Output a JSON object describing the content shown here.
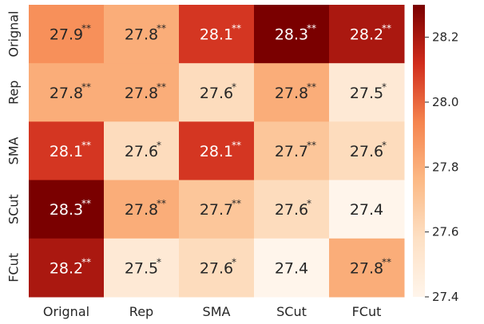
{
  "chart_data": {
    "type": "heatmap",
    "title": "",
    "xlabel": "",
    "ylabel": "",
    "x_categories": [
      "Orignal",
      "Rep",
      "SMA",
      "SCut",
      "FCut"
    ],
    "y_categories": [
      "Orignal",
      "Rep",
      "SMA",
      "SCut",
      "FCut"
    ],
    "values": [
      [
        27.9,
        27.8,
        28.1,
        28.3,
        28.2
      ],
      [
        27.8,
        27.8,
        27.6,
        27.8,
        27.5
      ],
      [
        28.1,
        27.6,
        28.1,
        27.7,
        27.6
      ],
      [
        28.3,
        27.8,
        27.7,
        27.6,
        27.4
      ],
      [
        28.2,
        27.5,
        27.6,
        27.4,
        27.8
      ]
    ],
    "cell_labels": [
      [
        "27.9",
        "27.8",
        "28.1",
        "28.3",
        "28.2"
      ],
      [
        "27.8",
        "27.8",
        "27.6",
        "27.8",
        "27.5"
      ],
      [
        "28.1",
        "27.6",
        "28.1",
        "27.7",
        "27.6"
      ],
      [
        "28.3",
        "27.8",
        "27.7",
        "27.6",
        "27.4"
      ],
      [
        "28.2",
        "27.5",
        "27.6",
        "27.4",
        "27.8"
      ]
    ],
    "significance": [
      [
        "**",
        "**",
        "**",
        "**",
        "**"
      ],
      [
        "**",
        "**",
        "*",
        "**",
        "*"
      ],
      [
        "**",
        "*",
        "**",
        "**",
        "*"
      ],
      [
        "**",
        "**",
        "**",
        "*",
        ""
      ],
      [
        "**",
        "*",
        "*",
        "",
        "**"
      ]
    ],
    "color_range": [
      27.4,
      28.3
    ],
    "colormap": "OrRd",
    "colorbar": {
      "ticks": [
        27.4,
        27.6,
        27.8,
        28.0,
        28.2
      ],
      "tick_labels": [
        "27.4",
        "27.6",
        "27.8",
        "28.0",
        "28.2"
      ],
      "placement": "right"
    }
  }
}
